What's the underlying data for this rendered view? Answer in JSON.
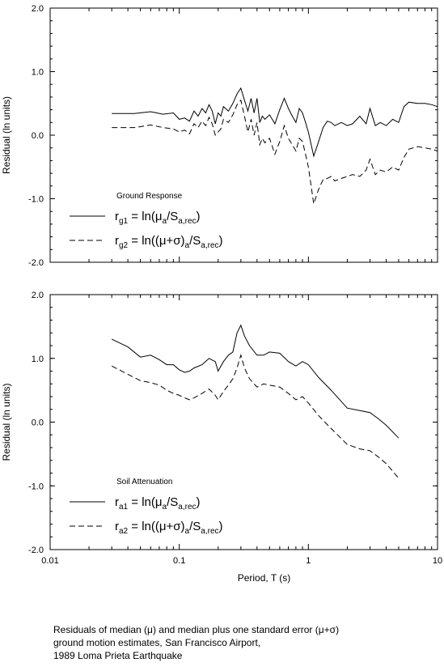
{
  "caption": {
    "lines": [
      "Residuals of median (μ) and median plus one standard error (μ+σ)",
      "ground motion estimates, San Francisco Airport,",
      "1989 Loma Prieta Earthquake"
    ]
  },
  "chart_data": [
    {
      "type": "line",
      "x_scale": "log",
      "xlim": [
        0.01,
        10
      ],
      "ylim": [
        -2.0,
        2.0
      ],
      "xlabel": "",
      "ylabel": "Residual (ln units)",
      "x_tick_labels": [],
      "y_ticks": [
        2.0,
        1.0,
        0.0,
        -1.0,
        -2.0
      ],
      "y_tick_labels": [
        "2.0",
        "1.0",
        "0.0",
        "-1.0",
        "-2.0"
      ],
      "grid": false,
      "legend_title": "Ground Response",
      "legend_position": "lower-left",
      "series": [
        {
          "name": "r_g1 = ln(μ_a/S_a,rec)",
          "legend": {
            "main": "r",
            "sub1": "g1",
            "eq": " = ln(μ",
            "sub2": "a",
            "mid": "/S",
            "sub3": "a,rec",
            "end": ")"
          },
          "style": "solid",
          "x": [
            0.03,
            0.045,
            0.06,
            0.075,
            0.09,
            0.1,
            0.11,
            0.12,
            0.13,
            0.14,
            0.15,
            0.16,
            0.17,
            0.18,
            0.19,
            0.2,
            0.21,
            0.22,
            0.24,
            0.26,
            0.28,
            0.3,
            0.32,
            0.34,
            0.36,
            0.38,
            0.4,
            0.42,
            0.44,
            0.46,
            0.5,
            0.55,
            0.6,
            0.65,
            0.7,
            0.75,
            0.8,
            0.85,
            0.9,
            0.95,
            1.0,
            1.1,
            1.2,
            1.3,
            1.4,
            1.5,
            1.6,
            1.8,
            2.0,
            2.2,
            2.5,
            2.8,
            3.0,
            3.3,
            3.6,
            4.0,
            4.5,
            5.0,
            5.5,
            6.0,
            7.0,
            8.0,
            9.0,
            10.0
          ],
          "y": [
            0.34,
            0.34,
            0.37,
            0.33,
            0.35,
            0.25,
            0.27,
            0.22,
            0.38,
            0.3,
            0.42,
            0.35,
            0.48,
            0.38,
            0.18,
            0.35,
            0.3,
            0.45,
            0.38,
            0.5,
            0.65,
            0.74,
            0.55,
            0.38,
            0.58,
            0.35,
            0.58,
            0.2,
            0.3,
            0.25,
            0.32,
            0.18,
            0.4,
            0.58,
            0.42,
            0.3,
            0.2,
            0.42,
            0.35,
            0.2,
            0.05,
            -0.33,
            -0.1,
            0.12,
            0.22,
            0.2,
            0.15,
            0.2,
            0.15,
            0.18,
            0.3,
            0.18,
            0.42,
            0.15,
            0.2,
            0.15,
            0.25,
            0.2,
            0.45,
            0.52,
            0.5,
            0.5,
            0.48,
            0.45
          ]
        },
        {
          "name": "r_g2 = ln((μ+σ)_a/S_a,rec)",
          "legend": {
            "main": "r",
            "sub1": "g2",
            "eq": " = ln((μ+σ)",
            "sub2": "a",
            "mid": "/S",
            "sub3": "a,rec",
            "end": ")"
          },
          "style": "dashed",
          "x": [
            0.03,
            0.045,
            0.06,
            0.075,
            0.09,
            0.1,
            0.11,
            0.12,
            0.13,
            0.14,
            0.15,
            0.16,
            0.17,
            0.18,
            0.19,
            0.2,
            0.21,
            0.22,
            0.24,
            0.26,
            0.28,
            0.3,
            0.32,
            0.34,
            0.36,
            0.38,
            0.4,
            0.42,
            0.44,
            0.46,
            0.5,
            0.55,
            0.6,
            0.65,
            0.7,
            0.75,
            0.8,
            0.85,
            0.9,
            0.95,
            1.0,
            1.1,
            1.2,
            1.3,
            1.4,
            1.5,
            1.6,
            1.8,
            2.0,
            2.2,
            2.5,
            2.8,
            3.0,
            3.3,
            3.6,
            4.0,
            4.5,
            5.0,
            5.5,
            6.0,
            7.0,
            8.0,
            9.0,
            10.0
          ],
          "y": [
            0.12,
            0.12,
            0.16,
            0.12,
            0.1,
            0.05,
            0.08,
            0.02,
            0.18,
            0.12,
            0.22,
            0.15,
            0.28,
            0.18,
            0.0,
            0.05,
            0.1,
            0.25,
            0.2,
            0.32,
            0.48,
            0.55,
            0.3,
            0.05,
            0.25,
            0.0,
            0.2,
            -0.15,
            -0.05,
            -0.12,
            -0.05,
            -0.3,
            -0.1,
            0.15,
            -0.05,
            -0.15,
            -0.25,
            -0.05,
            -0.1,
            -0.3,
            -0.5,
            -1.08,
            -0.85,
            -0.7,
            -0.68,
            -0.65,
            -0.72,
            -0.68,
            -0.65,
            -0.62,
            -0.65,
            -0.55,
            -0.38,
            -0.62,
            -0.55,
            -0.58,
            -0.5,
            -0.55,
            -0.35,
            -0.22,
            -0.18,
            -0.2,
            -0.22,
            -0.25
          ]
        }
      ]
    },
    {
      "type": "line",
      "x_scale": "log",
      "xlim": [
        0.01,
        10
      ],
      "ylim": [
        -2.0,
        2.0
      ],
      "xlabel": "Period, T (s)",
      "ylabel": "Residual (ln units)",
      "x_ticks": [
        0.01,
        0.1,
        1,
        10
      ],
      "x_tick_labels": [
        "0.01",
        "0.1",
        "1",
        "10"
      ],
      "y_ticks": [
        2.0,
        1.0,
        0.0,
        -1.0,
        -2.0
      ],
      "y_tick_labels": [
        "2.0",
        "1.0",
        "0.0",
        "-1.0",
        "-2.0"
      ],
      "grid": false,
      "legend_title": "Soil Attenuation",
      "legend_position": "lower-left",
      "series": [
        {
          "name": "r_a1 = ln(μ_a/S_a,rec)",
          "legend": {
            "main": "r",
            "sub1": "a1",
            "eq": " = ln(μ",
            "sub2": "a",
            "mid": "/S",
            "sub3": "a,rec",
            "end": ")"
          },
          "style": "solid",
          "x": [
            0.03,
            0.04,
            0.05,
            0.06,
            0.07,
            0.08,
            0.09,
            0.1,
            0.11,
            0.12,
            0.13,
            0.15,
            0.17,
            0.19,
            0.2,
            0.22,
            0.24,
            0.26,
            0.28,
            0.3,
            0.32,
            0.35,
            0.4,
            0.45,
            0.5,
            0.6,
            0.7,
            0.8,
            0.9,
            1.0,
            1.2,
            1.5,
            2.0,
            2.5,
            3.0,
            3.5,
            4.0,
            5.0
          ],
          "y": [
            1.3,
            1.18,
            1.02,
            1.05,
            0.98,
            0.9,
            0.9,
            0.82,
            0.78,
            0.8,
            0.85,
            0.9,
            1.0,
            0.95,
            0.8,
            0.95,
            1.05,
            1.1,
            1.4,
            1.52,
            1.35,
            1.2,
            1.05,
            1.05,
            1.1,
            1.08,
            0.95,
            0.88,
            0.95,
            0.9,
            0.7,
            0.5,
            0.22,
            0.18,
            0.15,
            0.05,
            -0.05,
            -0.25
          ]
        },
        {
          "name": "r_a2 = ln((μ+σ)_a/S_a,rec)",
          "legend": {
            "main": "r",
            "sub1": "a2",
            "eq": " = ln((μ+σ)",
            "sub2": "a",
            "mid": "/S",
            "sub3": "a,rec",
            "end": ")"
          },
          "style": "dashed",
          "x": [
            0.03,
            0.04,
            0.05,
            0.06,
            0.07,
            0.08,
            0.09,
            0.1,
            0.11,
            0.12,
            0.13,
            0.15,
            0.17,
            0.19,
            0.2,
            0.22,
            0.24,
            0.26,
            0.28,
            0.3,
            0.32,
            0.35,
            0.4,
            0.45,
            0.5,
            0.6,
            0.7,
            0.8,
            0.9,
            1.0,
            1.2,
            1.5,
            2.0,
            2.5,
            3.0,
            3.5,
            4.0,
            5.0
          ],
          "y": [
            0.88,
            0.75,
            0.65,
            0.62,
            0.58,
            0.5,
            0.45,
            0.42,
            0.38,
            0.35,
            0.38,
            0.45,
            0.52,
            0.42,
            0.35,
            0.48,
            0.58,
            0.68,
            0.85,
            1.05,
            0.85,
            0.68,
            0.55,
            0.6,
            0.58,
            0.55,
            0.45,
            0.35,
            0.4,
            0.3,
            0.1,
            -0.1,
            -0.35,
            -0.42,
            -0.45,
            -0.55,
            -0.65,
            -0.88
          ]
        }
      ]
    }
  ]
}
